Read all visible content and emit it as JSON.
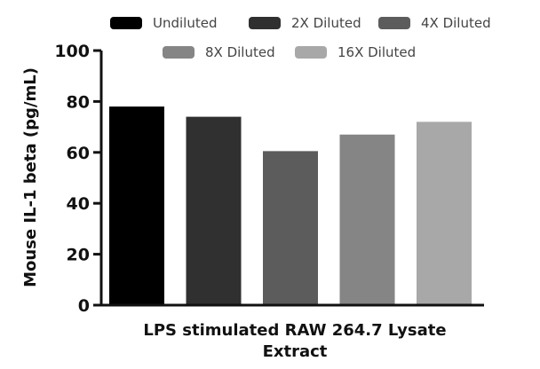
{
  "chart_data": {
    "type": "bar",
    "ylabel": "Mouse  IL-1 beta (pg/mL)",
    "xlabel_lines": [
      "LPS stimulated RAW 264.7 Lysate",
      "Extract"
    ],
    "ylim": [
      0,
      100
    ],
    "yticks": [
      0,
      20,
      40,
      60,
      80,
      100
    ],
    "grid": false,
    "legend_position": "top",
    "series": [
      {
        "name": "Undiluted",
        "value": 78,
        "color": "#000000"
      },
      {
        "name": "2X Diluted",
        "value": 74,
        "color": "#303030"
      },
      {
        "name": "4X Diluted",
        "value": 60.5,
        "color": "#5c5c5c"
      },
      {
        "name": "8X Diluted",
        "value": 67,
        "color": "#858585"
      },
      {
        "name": "16X Diluted",
        "value": 72,
        "color": "#a8a8a8"
      }
    ]
  }
}
